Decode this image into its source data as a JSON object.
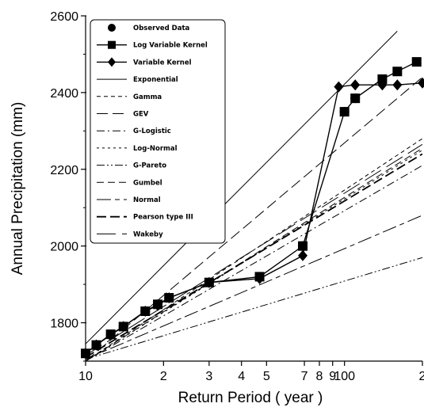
{
  "chart_data": {
    "type": "line",
    "xlabel": "Return Period ( year )",
    "ylabel": "Annual Precipitation (mm)",
    "xscale": "log",
    "xlim": [
      10,
      200
    ],
    "ylim": [
      1700,
      2600
    ],
    "x_tick_labels": [
      {
        "v": 10,
        "label": "10"
      },
      {
        "v": 20,
        "label": "2"
      },
      {
        "v": 30,
        "label": "3"
      },
      {
        "v": 40,
        "label": "4"
      },
      {
        "v": 50,
        "label": "5"
      },
      {
        "v": 70,
        "label": "7"
      },
      {
        "v": 80,
        "label": "8"
      },
      {
        "v": 90,
        "label": "9"
      },
      {
        "v": 100,
        "label": "100"
      },
      {
        "v": 200,
        "label": "2"
      }
    ],
    "y_ticks": [
      1800,
      2000,
      2200,
      2400,
      2600
    ],
    "legend_position": "top-left",
    "series": [
      {
        "name": "Observed Data",
        "marker": "circle",
        "line": "none",
        "x": [
          10,
          11,
          12.5,
          14,
          17,
          19,
          21,
          30,
          47,
          69,
          100,
          110
        ],
        "y": [
          1720,
          1742,
          1768,
          1790,
          1830,
          1848,
          1865,
          1905,
          1920,
          2000,
          2350,
          2385
        ]
      },
      {
        "name": "Log Variable Kernel",
        "marker": "square",
        "line": "solid",
        "x": [
          10,
          11,
          12.5,
          14,
          17,
          19,
          21,
          30,
          47,
          69,
          100,
          110,
          140,
          160,
          190
        ],
        "y": [
          1720,
          1742,
          1770,
          1790,
          1830,
          1848,
          1865,
          1905,
          1920,
          2000,
          2350,
          2385,
          2435,
          2455,
          2480
        ]
      },
      {
        "name": "Variable Kernel",
        "marker": "diamond",
        "line": "solid",
        "x": [
          10,
          11,
          12.5,
          14,
          17,
          19,
          21,
          30,
          47,
          69,
          95,
          110,
          140,
          160,
          200
        ],
        "y": [
          1720,
          1742,
          1768,
          1790,
          1830,
          1845,
          1865,
          1905,
          1915,
          1975,
          2415,
          2420,
          2420,
          2420,
          2425
        ]
      },
      {
        "name": "Exponential",
        "dash": "solid",
        "x": [
          10,
          160
        ],
        "y": [
          1745,
          2560
        ]
      },
      {
        "name": "Gamma",
        "dash": "short",
        "x": [
          10,
          200
        ],
        "y": [
          1700,
          2280
        ]
      },
      {
        "name": "GEV",
        "dash": "long",
        "x": [
          10,
          200
        ],
        "y": [
          1700,
          2440
        ]
      },
      {
        "name": "G-Logistic",
        "dash": "dashdot",
        "x": [
          10,
          200
        ],
        "y": [
          1700,
          2210
        ]
      },
      {
        "name": "Log-Normal",
        "dash": "dotted",
        "x": [
          10,
          200
        ],
        "y": [
          1700,
          2250
        ]
      },
      {
        "name": "G-Pareto",
        "dash": "dashdotdot",
        "x": [
          10,
          200
        ],
        "y": [
          1705,
          1970
        ]
      },
      {
        "name": "Gumbel",
        "dash": "medium",
        "x": [
          10,
          200
        ],
        "y": [
          1700,
          2255
        ]
      },
      {
        "name": "Normal",
        "dash": "longshort",
        "x": [
          10,
          200
        ],
        "y": [
          1705,
          2080
        ]
      },
      {
        "name": "Pearson type III",
        "dash": "thickdash",
        "x": [
          10,
          200
        ],
        "y": [
          1710,
          2240
        ]
      },
      {
        "name": "Wakeby",
        "dash": "verylong",
        "x": [
          10,
          200
        ],
        "y": [
          1715,
          2265
        ]
      }
    ]
  }
}
